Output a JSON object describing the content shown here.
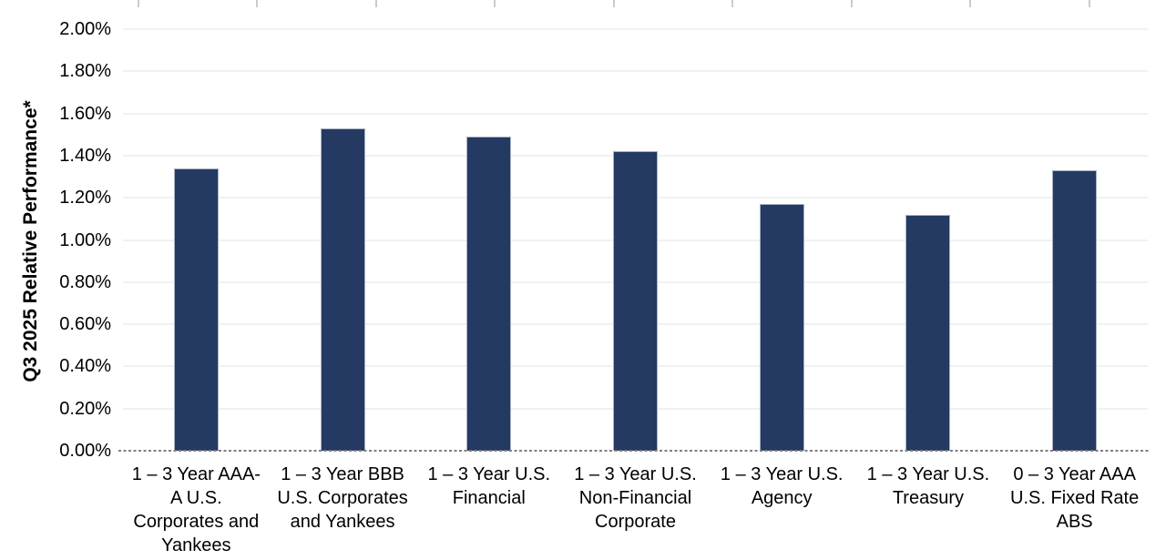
{
  "chart_data": {
    "type": "bar",
    "title": "",
    "xlabel": "",
    "ylabel": "Q3 2025 Relative Performance*",
    "categories": [
      "1 – 3 Year AAA-A U.S. Corporates and Yankees",
      "1 – 3 Year BBB U.S. Corporates and Yankees",
      "1 – 3 Year U.S. Financial",
      "1 – 3 Year U.S. Non-Financial Corporate",
      "1 – 3 Year U.S. Agency",
      "1 – 3 Year U.S. Treasury",
      "0 – 3 Year AAA U.S. Fixed Rate ABS"
    ],
    "category_display_lines": [
      "1 – 3 Year AAA-\nA U.S.\nCorporates and\nYankees",
      "1 – 3 Year BBB\nU.S. Corporates\nand Yankees",
      "1 – 3 Year U.S.\nFinancial",
      "1 – 3 Year U.S.\nNon-Financial\nCorporate",
      "1 – 3 Year U.S.\nAgency",
      "1 – 3 Year U.S.\nTreasury",
      "0 – 3 Year AAA\nU.S. Fixed Rate\nABS"
    ],
    "values": [
      1.34,
      1.53,
      1.49,
      1.42,
      1.17,
      1.12,
      1.33
    ],
    "value_unit": "%",
    "ylim": [
      0.0,
      2.0
    ],
    "ytick_step": 0.2,
    "ytick_labels": [
      "0.00%",
      "0.20%",
      "0.40%",
      "0.60%",
      "0.80%",
      "1.00%",
      "1.20%",
      "1.40%",
      "1.60%",
      "1.80%",
      "2.00%"
    ],
    "grid": "horizontal",
    "zero_line_style": "dashed",
    "legend": "none",
    "colors": {
      "bar_fill": "#253a62",
      "bar_border": "#a8b1c4",
      "gridline": "#f1f1f1",
      "zero_line": "#7f7f7f",
      "top_tick": "#cbcbcb",
      "text": "#000000",
      "background": "#ffffff"
    }
  }
}
